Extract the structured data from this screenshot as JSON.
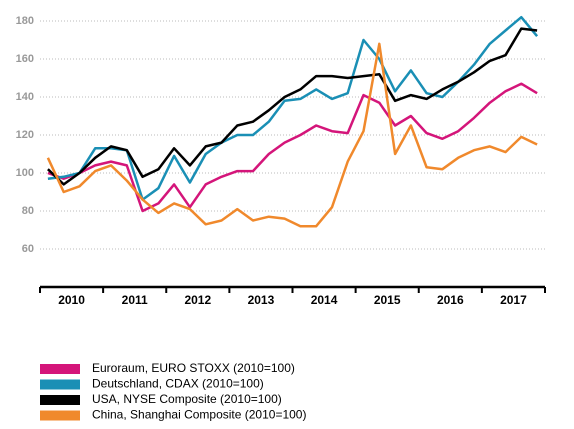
{
  "chart_data": {
    "type": "line",
    "x": [
      2010.125,
      2010.375,
      2010.625,
      2010.875,
      2011.125,
      2011.375,
      2011.625,
      2011.875,
      2012.125,
      2012.375,
      2012.625,
      2012.875,
      2013.125,
      2013.375,
      2013.625,
      2013.875,
      2014.125,
      2014.375,
      2014.625,
      2014.875,
      2015.125,
      2015.375,
      2015.625,
      2015.875,
      2016.125,
      2016.375,
      2016.625,
      2016.875,
      2017.125,
      2017.375,
      2017.625,
      2017.875
    ],
    "xlim": [
      2010,
      2018
    ],
    "xticks": [
      {
        "value": 2010.5,
        "label": "2010"
      },
      {
        "value": 2011.5,
        "label": "2011"
      },
      {
        "value": 2012.5,
        "label": "2012"
      },
      {
        "value": 2013.5,
        "label": "2013"
      },
      {
        "value": 2014.5,
        "label": "2014"
      },
      {
        "value": 2015.5,
        "label": "2015"
      },
      {
        "value": 2016.5,
        "label": "2016"
      },
      {
        "value": 2017.5,
        "label": "2017"
      }
    ],
    "ylim": [
      40,
      180
    ],
    "yticks": [
      60,
      80,
      100,
      120,
      140,
      160,
      180
    ],
    "grid": true,
    "series": [
      {
        "name": "Euroraum, EURO STOXX (2010=100)",
        "color": "#d4157a",
        "values": [
          100,
          97,
          100,
          104,
          106,
          104,
          80,
          84,
          94,
          82,
          94,
          98,
          101,
          101,
          110,
          116,
          120,
          125,
          122,
          121,
          141,
          137,
          125,
          130,
          121,
          118,
          122,
          129,
          137,
          143,
          147,
          142
        ]
      },
      {
        "name": "Deutschland, CDAX (2010=100)",
        "color": "#1a8fb5",
        "values": [
          97,
          98,
          100,
          113,
          113,
          112,
          86,
          92,
          109,
          95,
          110,
          116,
          120,
          120,
          127,
          138,
          139,
          144,
          139,
          142,
          170,
          160,
          143,
          154,
          142,
          140,
          148,
          157,
          168,
          175,
          182,
          172
        ]
      },
      {
        "name": "USA, NYSE Composite (2010=100)",
        "color": "#000000",
        "values": [
          102,
          94,
          100,
          108,
          114,
          112,
          98,
          102,
          113,
          104,
          114,
          116,
          125,
          127,
          133,
          140,
          144,
          151,
          151,
          150,
          151,
          152,
          138,
          141,
          139,
          144,
          148,
          153,
          159,
          162,
          176,
          175
        ]
      },
      {
        "name": "China, Shanghai Composite (2010=100)",
        "color": "#f0892c",
        "values": [
          108,
          90,
          93,
          101,
          104,
          96,
          86,
          79,
          84,
          81,
          73,
          75,
          81,
          75,
          77,
          76,
          72,
          72,
          82,
          106,
          122,
          168,
          110,
          125,
          103,
          102,
          108,
          112,
          114,
          111,
          119,
          115
        ]
      }
    ]
  }
}
